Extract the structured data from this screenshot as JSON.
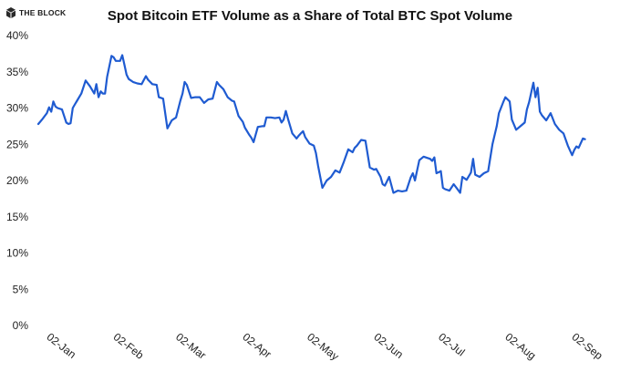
{
  "brand": {
    "logo_text": "THE BLOCK",
    "logo_icon": "the-block-cube-icon"
  },
  "chart_data": {
    "type": "line",
    "title": "Spot Bitcoin ETF Volume as a Share of Total BTC Spot Volume",
    "xlabel": "",
    "ylabel": "",
    "ylim": [
      0,
      40
    ],
    "y_ticks": [
      0,
      5,
      10,
      15,
      20,
      25,
      30,
      35,
      40
    ],
    "y_tick_labels": [
      "0%",
      "5%",
      "10%",
      "15%",
      "20%",
      "25%",
      "30%",
      "35%",
      "40%"
    ],
    "x_ticks": [
      "2024-01-02",
      "2024-02-02",
      "2024-03-02",
      "2024-04-02",
      "2024-05-02",
      "2024-06-02",
      "2024-07-02",
      "2024-08-02",
      "2024-09-02"
    ],
    "x_tick_labels": [
      "02-Jan",
      "02-Feb",
      "02-Mar",
      "02-Apr",
      "02-May",
      "02-Jun",
      "02-Jul",
      "02-Aug",
      "02-Sep"
    ],
    "x_range": [
      "2024-01-01",
      "2024-09-12"
    ],
    "grid": false,
    "legend": "none",
    "line_color": "#1f5bd1",
    "series": [
      {
        "x": [
          "2024-01-01",
          "2024-01-03",
          "2024-01-05",
          "2024-01-06",
          "2024-01-07",
          "2024-01-08",
          "2024-01-09",
          "2024-01-10",
          "2024-01-12",
          "2024-01-14",
          "2024-01-15",
          "2024-01-16",
          "2024-01-17",
          "2024-01-18",
          "2024-01-19",
          "2024-01-21",
          "2024-01-23",
          "2024-01-25",
          "2024-01-26",
          "2024-01-27",
          "2024-01-28",
          "2024-01-29",
          "2024-01-30",
          "2024-01-31",
          "2024-02-01",
          "2024-02-02",
          "2024-02-04",
          "2024-02-05",
          "2024-02-06",
          "2024-02-08",
          "2024-02-09",
          "2024-02-10",
          "2024-02-11",
          "2024-02-12",
          "2024-02-14",
          "2024-02-16",
          "2024-02-18",
          "2024-02-20",
          "2024-02-21",
          "2024-02-23",
          "2024-02-25",
          "2024-02-26",
          "2024-02-28",
          "2024-03-01",
          "2024-03-03",
          "2024-03-05",
          "2024-03-07",
          "2024-03-08",
          "2024-03-09",
          "2024-03-10",
          "2024-03-12",
          "2024-03-14",
          "2024-03-16",
          "2024-03-18",
          "2024-03-20",
          "2024-03-22",
          "2024-03-24",
          "2024-03-25",
          "2024-03-27",
          "2024-03-29",
          "2024-03-31",
          "2024-04-01",
          "2024-04-03",
          "2024-04-05",
          "2024-04-06",
          "2024-04-08",
          "2024-04-09",
          "2024-04-10",
          "2024-04-12",
          "2024-04-14",
          "2024-04-15",
          "2024-04-16",
          "2024-04-18",
          "2024-04-20",
          "2024-04-22",
          "2024-04-23",
          "2024-04-24",
          "2024-04-25",
          "2024-04-26",
          "2024-04-28",
          "2024-04-30",
          "2024-05-01",
          "2024-05-02",
          "2024-05-03",
          "2024-05-04",
          "2024-05-06",
          "2024-05-08",
          "2024-05-09",
          "2024-05-10",
          "2024-05-12",
          "2024-05-14",
          "2024-05-16",
          "2024-05-18",
          "2024-05-20",
          "2024-05-22",
          "2024-05-24",
          "2024-05-26",
          "2024-05-27",
          "2024-05-28",
          "2024-05-30",
          "2024-06-01",
          "2024-06-03",
          "2024-06-05",
          "2024-06-06",
          "2024-06-08",
          "2024-06-09",
          "2024-06-10",
          "2024-06-12",
          "2024-06-14",
          "2024-06-16",
          "2024-06-18",
          "2024-06-20",
          "2024-06-22",
          "2024-06-23",
          "2024-06-24",
          "2024-06-26",
          "2024-06-28",
          "2024-06-30",
          "2024-07-01",
          "2024-07-02",
          "2024-07-03",
          "2024-07-04",
          "2024-07-06",
          "2024-07-07",
          "2024-07-08",
          "2024-07-10",
          "2024-07-12",
          "2024-07-14",
          "2024-07-15",
          "2024-07-16",
          "2024-07-18",
          "2024-07-19",
          "2024-07-20",
          "2024-07-21",
          "2024-07-22",
          "2024-07-24",
          "2024-07-26",
          "2024-07-28",
          "2024-07-30",
          "2024-08-01",
          "2024-08-02",
          "2024-08-04",
          "2024-08-05",
          "2024-08-07",
          "2024-08-08",
          "2024-08-10",
          "2024-08-12",
          "2024-08-14",
          "2024-08-15",
          "2024-08-16",
          "2024-08-18",
          "2024-08-19",
          "2024-08-20",
          "2024-08-21",
          "2024-08-22",
          "2024-08-24",
          "2024-08-26",
          "2024-08-28",
          "2024-08-30",
          "2024-09-01",
          "2024-09-03",
          "2024-09-05",
          "2024-09-06",
          "2024-09-07",
          "2024-09-08",
          "2024-09-10",
          "2024-09-11"
        ],
        "values": [
          27.8,
          28.5,
          29.3,
          30.1,
          29.5,
          30.9,
          30.2,
          30.0,
          29.8,
          28.0,
          27.8,
          27.9,
          30.0,
          30.5,
          31.0,
          32.0,
          33.8,
          33.0,
          32.5,
          32.0,
          33.3,
          31.5,
          32.3,
          32.0,
          32.0,
          34.3,
          37.2,
          37.0,
          36.5,
          36.5,
          37.3,
          36.0,
          34.6,
          34.0,
          33.6,
          33.4,
          33.3,
          34.4,
          33.9,
          33.3,
          33.2,
          31.5,
          31.3,
          27.2,
          28.3,
          28.7,
          31.0,
          32.0,
          33.6,
          33.2,
          31.4,
          31.5,
          31.5,
          30.7,
          31.2,
          31.3,
          33.6,
          33.2,
          32.6,
          31.5,
          31.0,
          30.9,
          28.9,
          28.1,
          27.3,
          26.3,
          25.9,
          25.3,
          27.4,
          27.5,
          27.5,
          28.7,
          28.7,
          28.6,
          28.7,
          28.0,
          28.4,
          29.6,
          28.5,
          26.5,
          25.8,
          26.2,
          26.5,
          26.8,
          26.0,
          25.1,
          24.8,
          23.8,
          22.0,
          19.0,
          20.0,
          20.5,
          21.4,
          21.1,
          22.6,
          24.3,
          23.9,
          24.5,
          24.8,
          25.6,
          25.5,
          21.8,
          21.5,
          21.6,
          20.5,
          19.5,
          19.3,
          20.5,
          18.3,
          18.6,
          18.5,
          18.6,
          20.4,
          21.0,
          20.0,
          22.8,
          23.3,
          23.1,
          23.0,
          22.7,
          23.2,
          21.0,
          21.3,
          19.0,
          18.8,
          18.6,
          19.5,
          18.7,
          18.3,
          20.5,
          20.1,
          20.6,
          21.1,
          23.0,
          20.8,
          20.5,
          21.0,
          21.3,
          25.0,
          27.5,
          29.3,
          30.8,
          31.5,
          30.9,
          28.4,
          27.0,
          27.5,
          28.0,
          29.8,
          30.8,
          33.5,
          31.5,
          32.8,
          29.5,
          29.0,
          28.3,
          29.3,
          27.8,
          27.0,
          26.5,
          24.8,
          23.5,
          24.2,
          24.7,
          24.5,
          25.8,
          25.7
        ]
      }
    ]
  }
}
